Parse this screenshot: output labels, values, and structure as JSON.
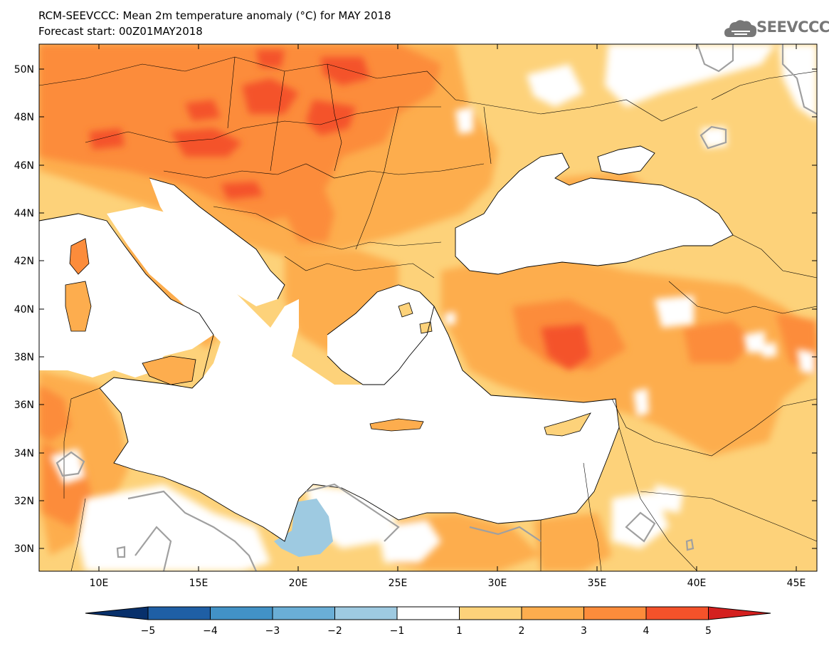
{
  "header": {
    "title": "RCM-SEEVCCC: Mean 2m temperature anomaly (°C) for MAY 2018",
    "subtitle": "Forecast start: 00Z01MAY2018",
    "logo_text": "SEEVCCC",
    "logo_icon": "cloud-icon"
  },
  "map": {
    "lon_range": [
      7,
      46
    ],
    "lat_range": [
      29,
      51
    ],
    "lon_ticks": [
      "10E",
      "15E",
      "20E",
      "25E",
      "30E",
      "35E",
      "40E",
      "45E"
    ],
    "lat_ticks": [
      "30N",
      "32N",
      "34N",
      "36N",
      "38N",
      "40N",
      "42N",
      "44N",
      "46N",
      "48N",
      "50N"
    ],
    "land_default_color": "#fdd27a",
    "sea_color": "#ffffff",
    "contour_color": "#a0a0a0"
  },
  "colorbar": {
    "labels": [
      "−5",
      "−4",
      "−3",
      "−2",
      "−1",
      "1",
      "2",
      "3",
      "4",
      "5"
    ],
    "colors": [
      "#08306b",
      "#1f5fa5",
      "#4292c6",
      "#6aaed6",
      "#9ecae1",
      "#ffffff",
      "#fdd27a",
      "#fdad4e",
      "#fc8c3b",
      "#f4522a",
      "#d4201f"
    ]
  }
}
